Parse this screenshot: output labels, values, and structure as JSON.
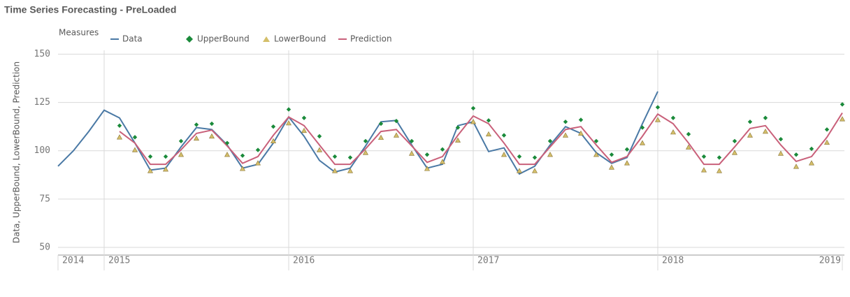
{
  "chart_data": {
    "type": "line",
    "title": "Time Series Forecasting - PreLoaded",
    "legend_title": "Measures",
    "y_label": "Data, UpperBound, LowerBound, Prediction",
    "categories": [
      "2014",
      null,
      null,
      "2015",
      null,
      null,
      null,
      null,
      null,
      null,
      null,
      null,
      null,
      null,
      null,
      "2016",
      null,
      null,
      null,
      null,
      null,
      null,
      null,
      null,
      null,
      null,
      null,
      "2017",
      null,
      null,
      null,
      null,
      null,
      null,
      null,
      null,
      null,
      null,
      null,
      "2018",
      null,
      null,
      null,
      null,
      null,
      null,
      null,
      null,
      null,
      null,
      null,
      "2019"
    ],
    "ylim": [
      46,
      152
    ],
    "yticks": [
      50,
      75,
      100,
      125,
      150
    ],
    "grid": true,
    "series": [
      {
        "name": "Data",
        "color": "#4a79a5",
        "marker": "line",
        "values": [
          92,
          100,
          110,
          121,
          117,
          104,
          90,
          91,
          102,
          112,
          111,
          103,
          91,
          93,
          104,
          117.5,
          107.5,
          95,
          89,
          91,
          102.5,
          115,
          115.7,
          103,
          91,
          93,
          113,
          115,
          99.6,
          101.5,
          88,
          92,
          103,
          112.5,
          109,
          99,
          93.5,
          96.5,
          114,
          130.7,
          null,
          null,
          null,
          null,
          null,
          null,
          null,
          null,
          null,
          null,
          null,
          null
        ]
      },
      {
        "name": "UpperBound",
        "color": "#1a8a3a",
        "marker": "diamond",
        "values": [
          null,
          null,
          null,
          null,
          113,
          107,
          97,
          97,
          105,
          113.5,
          114,
          104,
          97.5,
          100.4,
          112.5,
          121.4,
          117,
          107.5,
          97,
          96.5,
          105,
          114,
          115.4,
          105,
          98,
          100.7,
          112,
          122,
          115.7,
          108,
          97,
          96.5,
          105,
          115,
          116,
          105,
          98,
          100.7,
          112,
          122.5,
          117,
          108.6,
          97,
          96.5,
          105,
          115,
          117,
          106,
          98,
          101,
          111,
          124
        ]
      },
      {
        "name": "LowerBound",
        "color": "#d4bf6a",
        "marker": "triangle",
        "values": [
          null,
          null,
          null,
          null,
          107,
          100.4,
          89.6,
          90.4,
          98,
          106.4,
          107.5,
          98,
          90.7,
          93.6,
          105,
          114.3,
          110.4,
          100.4,
          89.6,
          89.6,
          99,
          106.8,
          108,
          98.6,
          90.7,
          94.3,
          105.4,
          115,
          108.6,
          98,
          89.6,
          89.6,
          98,
          108,
          109,
          98,
          91.4,
          93.6,
          104,
          116,
          109.6,
          101.8,
          90,
          89.6,
          99,
          108,
          110,
          98.6,
          91.8,
          93.6,
          104.3,
          116.4
        ]
      },
      {
        "name": "Prediction",
        "color": "#c9607a",
        "marker": "line",
        "values": [
          null,
          null,
          null,
          null,
          110,
          104,
          93,
          93,
          100.5,
          109,
          110.7,
          102.5,
          93.5,
          97,
          108,
          117.5,
          113,
          103,
          93,
          93,
          101,
          110,
          111,
          102.5,
          94,
          97,
          108,
          118,
          114,
          104,
          93,
          93,
          102,
          111,
          112.5,
          103,
          94,
          97,
          107.5,
          119,
          114,
          104,
          93,
          93,
          102,
          111.5,
          113,
          103,
          94.5,
          97,
          107,
          119.6
        ]
      }
    ]
  }
}
